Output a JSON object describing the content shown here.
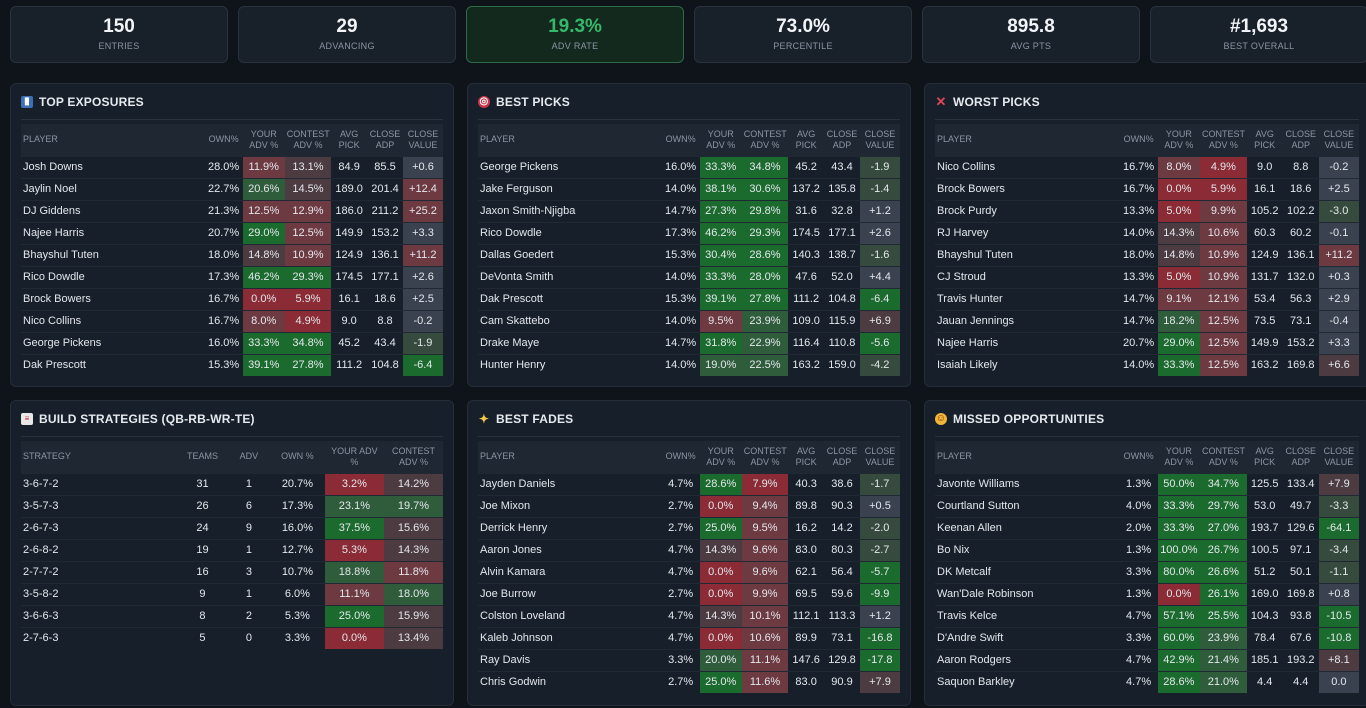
{
  "stats": [
    {
      "value": "150",
      "label": "ENTRIES"
    },
    {
      "value": "29",
      "label": "ADVANCING"
    },
    {
      "value": "19.3%",
      "label": "ADV RATE"
    },
    {
      "value": "73.0%",
      "label": "PERCENTILE"
    },
    {
      "value": "895.8",
      "label": "AVG PTS"
    },
    {
      "value": "#1,693",
      "label": "BEST OVERALL"
    }
  ],
  "player_headers": [
    "PLAYER",
    "OWN%",
    "YOUR ADV %",
    "CONTEST ADV %",
    "AVG PICK",
    "CLOSE ADP",
    "CLOSE VALUE"
  ],
  "top_exposures": {
    "title": "TOP EXPOSURES",
    "rows": [
      [
        "Josh Downs",
        "28.0%",
        "11.9%",
        "13.1%",
        "84.9",
        "85.5",
        "+0.6"
      ],
      [
        "Jaylin Noel",
        "22.7%",
        "20.6%",
        "14.5%",
        "189.0",
        "201.4",
        "+12.4"
      ],
      [
        "DJ Giddens",
        "21.3%",
        "12.5%",
        "12.9%",
        "186.0",
        "211.2",
        "+25.2"
      ],
      [
        "Najee Harris",
        "20.7%",
        "29.0%",
        "12.5%",
        "149.9",
        "153.2",
        "+3.3"
      ],
      [
        "Bhayshul Tuten",
        "18.0%",
        "14.8%",
        "10.9%",
        "124.9",
        "136.1",
        "+11.2"
      ],
      [
        "Rico Dowdle",
        "17.3%",
        "46.2%",
        "29.3%",
        "174.5",
        "177.1",
        "+2.6"
      ],
      [
        "Brock Bowers",
        "16.7%",
        "0.0%",
        "5.9%",
        "16.1",
        "18.6",
        "+2.5"
      ],
      [
        "Nico Collins",
        "16.7%",
        "8.0%",
        "4.9%",
        "9.0",
        "8.8",
        "-0.2"
      ],
      [
        "George Pickens",
        "16.0%",
        "33.3%",
        "34.8%",
        "45.2",
        "43.4",
        "-1.9"
      ],
      [
        "Dak Prescott",
        "15.3%",
        "39.1%",
        "27.8%",
        "111.2",
        "104.8",
        "-6.4"
      ]
    ]
  },
  "best_picks": {
    "title": "BEST PICKS",
    "rows": [
      [
        "George Pickens",
        "16.0%",
        "33.3%",
        "34.8%",
        "45.2",
        "43.4",
        "-1.9"
      ],
      [
        "Jake Ferguson",
        "14.0%",
        "38.1%",
        "30.6%",
        "137.2",
        "135.8",
        "-1.4"
      ],
      [
        "Jaxon Smith-Njigba",
        "14.7%",
        "27.3%",
        "29.8%",
        "31.6",
        "32.8",
        "+1.2"
      ],
      [
        "Rico Dowdle",
        "17.3%",
        "46.2%",
        "29.3%",
        "174.5",
        "177.1",
        "+2.6"
      ],
      [
        "Dallas Goedert",
        "15.3%",
        "30.4%",
        "28.6%",
        "140.3",
        "138.7",
        "-1.6"
      ],
      [
        "DeVonta Smith",
        "14.0%",
        "33.3%",
        "28.0%",
        "47.6",
        "52.0",
        "+4.4"
      ],
      [
        "Dak Prescott",
        "15.3%",
        "39.1%",
        "27.8%",
        "111.2",
        "104.8",
        "-6.4"
      ],
      [
        "Cam Skattebo",
        "14.0%",
        "9.5%",
        "23.9%",
        "109.0",
        "115.9",
        "+6.9"
      ],
      [
        "Drake Maye",
        "14.7%",
        "31.8%",
        "22.9%",
        "116.4",
        "110.8",
        "-5.6"
      ],
      [
        "Hunter Henry",
        "14.0%",
        "19.0%",
        "22.5%",
        "163.2",
        "159.0",
        "-4.2"
      ]
    ]
  },
  "worst_picks": {
    "title": "WORST PICKS",
    "rows": [
      [
        "Nico Collins",
        "16.7%",
        "8.0%",
        "4.9%",
        "9.0",
        "8.8",
        "-0.2"
      ],
      [
        "Brock Bowers",
        "16.7%",
        "0.0%",
        "5.9%",
        "16.1",
        "18.6",
        "+2.5"
      ],
      [
        "Brock Purdy",
        "13.3%",
        "5.0%",
        "9.9%",
        "105.2",
        "102.2",
        "-3.0"
      ],
      [
        "RJ Harvey",
        "14.0%",
        "14.3%",
        "10.6%",
        "60.3",
        "60.2",
        "-0.1"
      ],
      [
        "Bhayshul Tuten",
        "18.0%",
        "14.8%",
        "10.9%",
        "124.9",
        "136.1",
        "+11.2"
      ],
      [
        "CJ Stroud",
        "13.3%",
        "5.0%",
        "10.9%",
        "131.7",
        "132.0",
        "+0.3"
      ],
      [
        "Travis Hunter",
        "14.7%",
        "9.1%",
        "12.1%",
        "53.4",
        "56.3",
        "+2.9"
      ],
      [
        "Jauan Jennings",
        "14.7%",
        "18.2%",
        "12.5%",
        "73.5",
        "73.1",
        "-0.4"
      ],
      [
        "Najee Harris",
        "20.7%",
        "29.0%",
        "12.5%",
        "149.9",
        "153.2",
        "+3.3"
      ],
      [
        "Isaiah Likely",
        "14.0%",
        "33.3%",
        "12.5%",
        "163.2",
        "169.8",
        "+6.6"
      ]
    ]
  },
  "build_strategies": {
    "title": "BUILD STRATEGIES (QB-RB-WR-TE)",
    "headers": [
      "STRATEGY",
      "TEAMS",
      "ADV",
      "OWN %",
      "YOUR ADV %",
      "CONTEST ADV %"
    ],
    "rows": [
      [
        "3-6-7-2",
        "31",
        "1",
        "20.7%",
        "3.2%",
        "14.2%"
      ],
      [
        "3-5-7-3",
        "26",
        "6",
        "17.3%",
        "23.1%",
        "19.7%"
      ],
      [
        "2-6-7-3",
        "24",
        "9",
        "16.0%",
        "37.5%",
        "15.6%"
      ],
      [
        "2-6-8-2",
        "19",
        "1",
        "12.7%",
        "5.3%",
        "14.3%"
      ],
      [
        "2-7-7-2",
        "16",
        "3",
        "10.7%",
        "18.8%",
        "11.8%"
      ],
      [
        "3-5-8-2",
        "9",
        "1",
        "6.0%",
        "11.1%",
        "18.0%"
      ],
      [
        "3-6-6-3",
        "8",
        "2",
        "5.3%",
        "25.0%",
        "15.9%"
      ],
      [
        "2-7-6-3",
        "5",
        "0",
        "3.3%",
        "0.0%",
        "13.4%"
      ]
    ]
  },
  "best_fades": {
    "title": "BEST FADES",
    "rows": [
      [
        "Jayden Daniels",
        "4.7%",
        "28.6%",
        "7.9%",
        "40.3",
        "38.6",
        "-1.7"
      ],
      [
        "Joe Mixon",
        "2.7%",
        "0.0%",
        "9.4%",
        "89.8",
        "90.3",
        "+0.5"
      ],
      [
        "Derrick Henry",
        "2.7%",
        "25.0%",
        "9.5%",
        "16.2",
        "14.2",
        "-2.0"
      ],
      [
        "Aaron Jones",
        "4.7%",
        "14.3%",
        "9.6%",
        "83.0",
        "80.3",
        "-2.7"
      ],
      [
        "Alvin Kamara",
        "4.7%",
        "0.0%",
        "9.6%",
        "62.1",
        "56.4",
        "-5.7"
      ],
      [
        "Joe Burrow",
        "2.7%",
        "0.0%",
        "9.9%",
        "69.5",
        "59.6",
        "-9.9"
      ],
      [
        "Colston Loveland",
        "4.7%",
        "14.3%",
        "10.1%",
        "112.1",
        "113.3",
        "+1.2"
      ],
      [
        "Kaleb Johnson",
        "4.7%",
        "0.0%",
        "10.6%",
        "89.9",
        "73.1",
        "-16.8"
      ],
      [
        "Ray Davis",
        "3.3%",
        "20.0%",
        "11.1%",
        "147.6",
        "129.8",
        "-17.8"
      ],
      [
        "Chris Godwin",
        "2.7%",
        "25.0%",
        "11.6%",
        "83.0",
        "90.9",
        "+7.9"
      ]
    ]
  },
  "missed_opportunities": {
    "title": "MISSED OPPORTUNITIES",
    "rows": [
      [
        "Javonte Williams",
        "1.3%",
        "50.0%",
        "34.7%",
        "125.5",
        "133.4",
        "+7.9"
      ],
      [
        "Courtland Sutton",
        "4.0%",
        "33.3%",
        "29.7%",
        "53.0",
        "49.7",
        "-3.3"
      ],
      [
        "Keenan Allen",
        "2.0%",
        "33.3%",
        "27.0%",
        "193.7",
        "129.6",
        "-64.1"
      ],
      [
        "Bo Nix",
        "1.3%",
        "100.0%",
        "26.7%",
        "100.5",
        "97.1",
        "-3.4"
      ],
      [
        "DK Metcalf",
        "3.3%",
        "80.0%",
        "26.6%",
        "51.2",
        "50.1",
        "-1.1"
      ],
      [
        "Wan'Dale Robinson",
        "1.3%",
        "0.0%",
        "26.1%",
        "169.0",
        "169.8",
        "+0.8"
      ],
      [
        "Travis Kelce",
        "4.7%",
        "57.1%",
        "25.5%",
        "104.3",
        "93.8",
        "-10.5"
      ],
      [
        "D'Andre Swift",
        "3.3%",
        "60.0%",
        "23.9%",
        "78.4",
        "67.6",
        "-10.8"
      ],
      [
        "Aaron Rodgers",
        "4.7%",
        "42.9%",
        "21.4%",
        "185.1",
        "193.2",
        "+8.1"
      ],
      [
        "Saquon Barkley",
        "4.7%",
        "28.6%",
        "21.0%",
        "4.4",
        "4.4",
        "0.0"
      ]
    ]
  },
  "colors": {
    "accent_green": "#34b86a",
    "panel_bg": "#17202a",
    "page_bg": "#0f141b"
  }
}
